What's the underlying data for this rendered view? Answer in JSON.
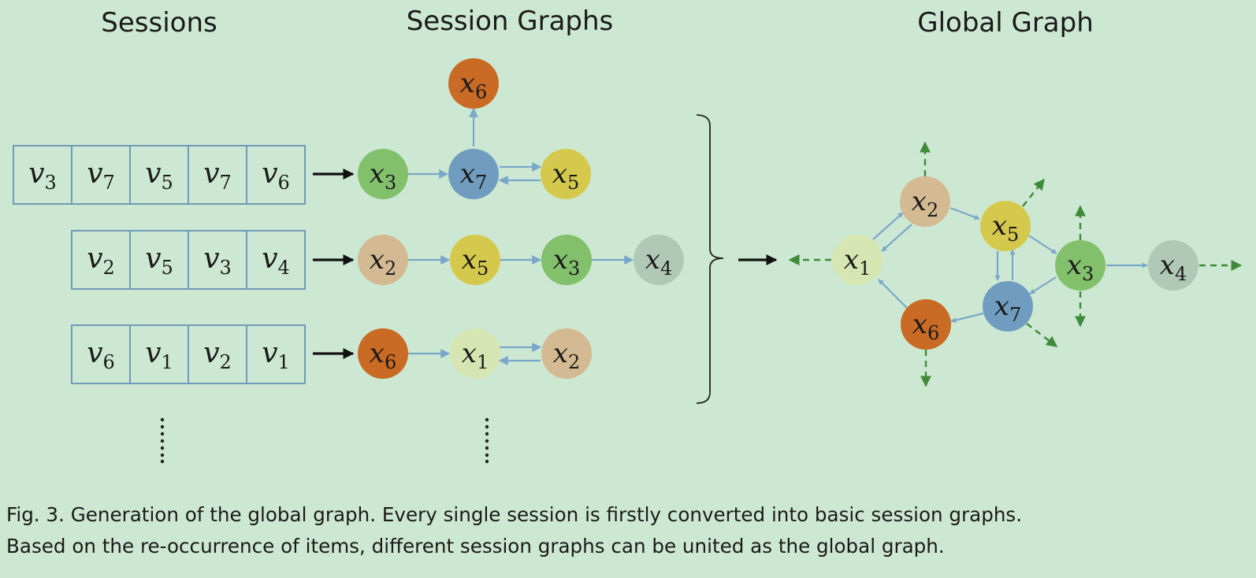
{
  "headings": {
    "sessions": "Sessions",
    "session_graphs": "Session Graphs",
    "global_graph": "Global Graph"
  },
  "sessions": [
    [
      {
        "base": "v",
        "sub": "3"
      },
      {
        "base": "v",
        "sub": "7"
      },
      {
        "base": "v",
        "sub": "5"
      },
      {
        "base": "v",
        "sub": "7"
      },
      {
        "base": "v",
        "sub": "6"
      }
    ],
    [
      {
        "base": "v",
        "sub": "2"
      },
      {
        "base": "v",
        "sub": "5"
      },
      {
        "base": "v",
        "sub": "3"
      },
      {
        "base": "v",
        "sub": "4"
      }
    ],
    [
      {
        "base": "v",
        "sub": "6"
      },
      {
        "base": "v",
        "sub": "1"
      },
      {
        "base": "v",
        "sub": "2"
      },
      {
        "base": "v",
        "sub": "1"
      }
    ]
  ],
  "session_graph_nodes": {
    "g1_x6": {
      "base": "x",
      "sub": "6"
    },
    "g1_x3": {
      "base": "x",
      "sub": "3"
    },
    "g1_x7": {
      "base": "x",
      "sub": "7"
    },
    "g1_x5": {
      "base": "x",
      "sub": "5"
    },
    "g2_x2": {
      "base": "x",
      "sub": "2"
    },
    "g2_x5": {
      "base": "x",
      "sub": "5"
    },
    "g2_x3": {
      "base": "x",
      "sub": "3"
    },
    "g2_x4": {
      "base": "x",
      "sub": "4"
    },
    "g3_x6": {
      "base": "x",
      "sub": "6"
    },
    "g3_x1": {
      "base": "x",
      "sub": "1"
    },
    "g3_x2": {
      "base": "x",
      "sub": "2"
    }
  },
  "global_graph_nodes": {
    "x1": {
      "base": "x",
      "sub": "1"
    },
    "x2": {
      "base": "x",
      "sub": "2"
    },
    "x5": {
      "base": "x",
      "sub": "5"
    },
    "x3": {
      "base": "x",
      "sub": "3"
    },
    "x4": {
      "base": "x",
      "sub": "4"
    },
    "x7": {
      "base": "x",
      "sub": "7"
    },
    "x6": {
      "base": "x",
      "sub": "6"
    }
  },
  "node_colors": {
    "x1": "#d6e6b3",
    "x2": "#d4ba92",
    "x3": "#82c06c",
    "x4": "#b0c9b6",
    "x5": "#d4c94c",
    "x6": "#c96a25",
    "x7": "#6f9cbf"
  },
  "edge_color": "#7aa7c9",
  "dashed_edge_color": "#3e8a3a",
  "background_color": "#cde8d2",
  "caption": {
    "line1": "Fig. 3.  Generation of the global graph. Every single session is firstly converted into basic session graphs.",
    "line2": "Based on the re-occurrence of items, different session graphs can be united as the global graph."
  }
}
